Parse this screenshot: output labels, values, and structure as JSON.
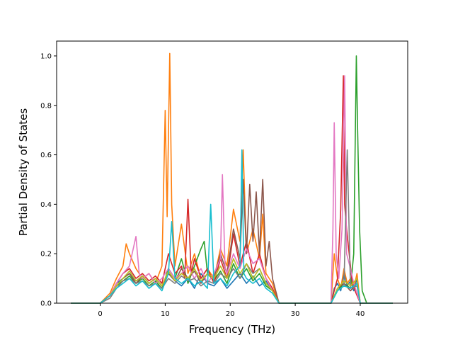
{
  "chart_data": {
    "type": "line",
    "title": "",
    "xlabel": "Frequency (THz)",
    "ylabel": "Partial Density of States",
    "xlim": [
      -6.7,
      47.3
    ],
    "ylim": [
      0,
      1.06
    ],
    "xticks": [
      0,
      10,
      20,
      30,
      40
    ],
    "xtick_labels": [
      "0",
      "10",
      "20",
      "30",
      "40"
    ],
    "yticks": [
      0.0,
      0.2,
      0.4,
      0.6,
      0.8,
      1.0
    ],
    "ytick_labels": [
      "0.0",
      "0.2",
      "0.4",
      "0.6",
      "0.8",
      "1.0"
    ],
    "grid": false,
    "legend": "none",
    "series": [
      {
        "color": "#1f77b4",
        "x": [
          -4.5,
          0,
          1.5,
          2.5,
          3.5,
          4.5,
          5.5,
          6.5,
          7.5,
          8.5,
          9.5,
          10.5,
          11.5,
          12.5,
          13.5,
          14.5,
          15.5,
          16.5,
          17.5,
          18.5,
          19.5,
          20.5,
          21.5,
          22.5,
          23.5,
          24.5,
          25.5,
          26.5,
          27.5,
          30,
          35.5,
          36,
          36.5,
          37,
          37.5,
          38,
          38.5,
          39,
          39.5,
          40,
          41,
          45
        ],
        "y": [
          0,
          0,
          0.03,
          0.08,
          0.1,
          0.12,
          0.09,
          0.11,
          0.08,
          0.1,
          0.07,
          0.12,
          0.09,
          0.07,
          0.1,
          0.06,
          0.12,
          0.08,
          0.07,
          0.1,
          0.06,
          0.09,
          0.12,
          0.08,
          0.11,
          0.07,
          0.09,
          0.05,
          0,
          0,
          0,
          0.06,
          0.08,
          0.05,
          0.12,
          0.07,
          0.09,
          0.05,
          0.1,
          0,
          0,
          0
        ]
      },
      {
        "color": "#ff7f0e",
        "x": [
          -4.5,
          0,
          1.5,
          2.5,
          3.5,
          4,
          4.5,
          5.5,
          6.5,
          7.5,
          8.5,
          9.5,
          10,
          10.3,
          10.7,
          11,
          11.5,
          12.5,
          13.5,
          14.5,
          15.5,
          16.5,
          17.5,
          18.5,
          19.5,
          20.5,
          21.5,
          22,
          22.5,
          23.5,
          24.5,
          25,
          25.5,
          26.5,
          27.5,
          30,
          35.5,
          36,
          36.5,
          37,
          37.5,
          38,
          38.5,
          39,
          39.5,
          40,
          41,
          45
        ],
        "y": [
          0,
          0,
          0.04,
          0.1,
          0.15,
          0.24,
          0.2,
          0.14,
          0.1,
          0.12,
          0.08,
          0.15,
          0.78,
          0.35,
          1.01,
          0.4,
          0.15,
          0.32,
          0.12,
          0.2,
          0.1,
          0.14,
          0.1,
          0.22,
          0.15,
          0.38,
          0.25,
          0.62,
          0.2,
          0.3,
          0.18,
          0.36,
          0.12,
          0.08,
          0,
          0,
          0,
          0.2,
          0.1,
          0.06,
          0.14,
          0.08,
          0.1,
          0.06,
          0.12,
          0,
          0,
          0
        ]
      },
      {
        "color": "#2ca02c",
        "x": [
          -4.5,
          0,
          1.5,
          2.5,
          3.5,
          4.5,
          5.5,
          6.5,
          7.5,
          8.5,
          9.5,
          10.5,
          11.5,
          12.5,
          13.5,
          14.5,
          15.5,
          16,
          16.5,
          17.5,
          18.5,
          19.5,
          20.5,
          21.5,
          22.5,
          23.5,
          24.5,
          25.5,
          26.5,
          27.5,
          30,
          35.5,
          36.5,
          37.5,
          38.5,
          39,
          39.4,
          39.6,
          39.9,
          40.3,
          41,
          45
        ],
        "y": [
          0,
          0,
          0.03,
          0.07,
          0.09,
          0.11,
          0.08,
          0.1,
          0.07,
          0.09,
          0.06,
          0.14,
          0.1,
          0.18,
          0.08,
          0.15,
          0.22,
          0.25,
          0.12,
          0.09,
          0.13,
          0.08,
          0.16,
          0.1,
          0.14,
          0.09,
          0.12,
          0.07,
          0.05,
          0,
          0,
          0,
          0.05,
          0.08,
          0.06,
          0.2,
          1.0,
          0.7,
          0.3,
          0.05,
          0,
          0
        ]
      },
      {
        "color": "#d62728",
        "x": [
          -4.5,
          0,
          1.5,
          2.5,
          3.5,
          4.5,
          5.5,
          6.5,
          7.5,
          8.5,
          9.5,
          10.5,
          11.5,
          12.5,
          13,
          13.5,
          14,
          14.5,
          15.5,
          16.5,
          17.5,
          18.5,
          19.5,
          20.5,
          21.5,
          22.5,
          23.5,
          24.5,
          25.5,
          26.5,
          27.5,
          30,
          35.5,
          36.5,
          37,
          37.4,
          37.6,
          37.9,
          38.3,
          38.7,
          39.2,
          40,
          41,
          45
        ],
        "y": [
          0,
          0,
          0.03,
          0.08,
          0.12,
          0.14,
          0.1,
          0.12,
          0.09,
          0.11,
          0.08,
          0.2,
          0.12,
          0.15,
          0.1,
          0.42,
          0.12,
          0.18,
          0.1,
          0.14,
          0.08,
          0.18,
          0.1,
          0.28,
          0.15,
          0.25,
          0.12,
          0.2,
          0.1,
          0.06,
          0,
          0,
          0,
          0.1,
          0.38,
          0.92,
          0.4,
          0.3,
          0.2,
          0.1,
          0.05,
          0,
          0,
          0
        ]
      },
      {
        "color": "#8c564b",
        "x": [
          -4.5,
          0,
          1.5,
          2.5,
          3.5,
          4.5,
          5.5,
          6.5,
          7.5,
          8.5,
          9.5,
          10.5,
          11.5,
          12.5,
          13.5,
          14.5,
          15.5,
          16.5,
          17.5,
          18.5,
          19.5,
          20.5,
          21.5,
          22,
          22.5,
          23,
          23.5,
          24,
          24.5,
          25,
          25.5,
          26,
          26.5,
          27.5,
          30,
          35.5,
          36.5,
          37.5,
          38.5,
          39.5,
          40,
          41,
          45
        ],
        "y": [
          0,
          0,
          0.03,
          0.07,
          0.1,
          0.12,
          0.08,
          0.11,
          0.08,
          0.1,
          0.07,
          0.12,
          0.09,
          0.14,
          0.1,
          0.13,
          0.08,
          0.12,
          0.1,
          0.2,
          0.12,
          0.3,
          0.18,
          0.5,
          0.2,
          0.48,
          0.25,
          0.45,
          0.2,
          0.5,
          0.15,
          0.25,
          0.1,
          0,
          0,
          0,
          0.06,
          0.08,
          0.05,
          0.08,
          0,
          0,
          0
        ]
      },
      {
        "color": "#e377c2",
        "x": [
          -4.5,
          0,
          1.5,
          2.5,
          3.5,
          4.5,
          5.5,
          6,
          6.5,
          7.5,
          8.5,
          9.5,
          10.5,
          11.5,
          12.5,
          13.5,
          14.5,
          15.5,
          16.5,
          17.5,
          18.5,
          18.8,
          19.2,
          19.5,
          20.5,
          21.5,
          22.5,
          23.5,
          24.5,
          25.5,
          26.5,
          27.5,
          30,
          35.5,
          35.8,
          36,
          36.3,
          36.7,
          37.2,
          37.6,
          37.9,
          38.4,
          39,
          40,
          41,
          45
        ],
        "y": [
          0,
          0,
          0.03,
          0.08,
          0.12,
          0.15,
          0.27,
          0.12,
          0.1,
          0.12,
          0.08,
          0.1,
          0.14,
          0.1,
          0.12,
          0.15,
          0.1,
          0.14,
          0.08,
          0.12,
          0.18,
          0.52,
          0.15,
          0.12,
          0.2,
          0.14,
          0.22,
          0.16,
          0.18,
          0.1,
          0.05,
          0,
          0,
          0,
          0.3,
          0.73,
          0.2,
          0.1,
          0.3,
          0.92,
          0.2,
          0.15,
          0.08,
          0,
          0,
          0
        ]
      },
      {
        "color": "#7f7f7f",
        "x": [
          -4.5,
          0,
          1.5,
          2.5,
          3.5,
          4.5,
          5.5,
          6.5,
          7.5,
          8.5,
          9.5,
          10.5,
          11.5,
          12.5,
          13.5,
          14.5,
          15.5,
          16.5,
          17.5,
          18.5,
          19.5,
          20.5,
          21.5,
          22.5,
          23.5,
          24.5,
          25.5,
          26.5,
          27.5,
          30,
          35.5,
          36.5,
          37.5,
          38,
          38.5,
          39.5,
          40,
          41,
          45
        ],
        "y": [
          0,
          0,
          0.02,
          0.06,
          0.09,
          0.1,
          0.08,
          0.09,
          0.07,
          0.08,
          0.06,
          0.1,
          0.08,
          0.11,
          0.09,
          0.1,
          0.07,
          0.09,
          0.08,
          0.12,
          0.1,
          0.14,
          0.1,
          0.16,
          0.12,
          0.14,
          0.08,
          0.05,
          0,
          0,
          0,
          0.05,
          0.07,
          0.62,
          0.06,
          0.07,
          0,
          0,
          0
        ]
      },
      {
        "color": "#bcbd22",
        "x": [
          -4.5,
          0,
          1.5,
          2.5,
          3.5,
          4.5,
          5.5,
          6.5,
          7.5,
          8.5,
          9.5,
          10.5,
          11.5,
          12.5,
          13.5,
          14.5,
          15.5,
          16.5,
          17.5,
          18.5,
          19.5,
          20.5,
          21.5,
          22.5,
          23.5,
          24.5,
          25.5,
          26.5,
          27.5,
          30,
          35.5,
          36.5,
          37.5,
          38.5,
          39.5,
          40,
          41,
          45
        ],
        "y": [
          0,
          0,
          0.03,
          0.07,
          0.1,
          0.13,
          0.09,
          0.11,
          0.08,
          0.1,
          0.07,
          0.13,
          0.09,
          0.12,
          0.1,
          0.14,
          0.09,
          0.12,
          0.1,
          0.15,
          0.1,
          0.18,
          0.12,
          0.16,
          0.1,
          0.14,
          0.08,
          0.05,
          0,
          0,
          0,
          0.06,
          0.09,
          0.07,
          0.1,
          0,
          0,
          0
        ]
      },
      {
        "color": "#17becf",
        "x": [
          -4.5,
          0,
          1.5,
          2.5,
          3.5,
          4.5,
          5.5,
          6.5,
          7.5,
          8.5,
          9.5,
          10.5,
          11,
          11.5,
          12.5,
          13.5,
          14.5,
          15.5,
          16.5,
          17,
          17.5,
          18.5,
          19.5,
          20.5,
          21.5,
          21.8,
          22.1,
          22.5,
          23.5,
          24.5,
          25.5,
          26.5,
          27.5,
          30,
          35.5,
          36.5,
          37.5,
          38.5,
          39.5,
          40,
          41,
          45
        ],
        "y": [
          0,
          0,
          0.03,
          0.06,
          0.08,
          0.1,
          0.07,
          0.09,
          0.06,
          0.08,
          0.05,
          0.12,
          0.33,
          0.1,
          0.08,
          0.1,
          0.07,
          0.09,
          0.06,
          0.4,
          0.08,
          0.1,
          0.07,
          0.12,
          0.15,
          0.62,
          0.12,
          0.1,
          0.08,
          0.1,
          0.06,
          0.04,
          0,
          0,
          0,
          0.05,
          0.07,
          0.06,
          0.08,
          0,
          0,
          0
        ]
      }
    ]
  }
}
